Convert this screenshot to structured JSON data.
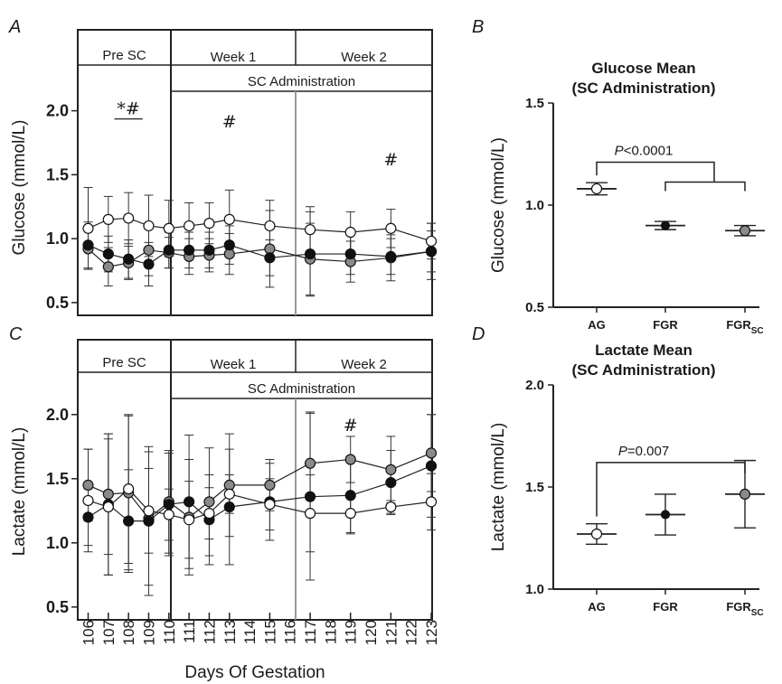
{
  "panel_letters": [
    "A",
    "B",
    "C",
    "D"
  ],
  "phases": {
    "pre": "Pre SC",
    "week1": "Week 1",
    "week2": "Week 2",
    "admin": "SC Administration"
  },
  "x_axis_title": "Days Of Gestation",
  "colors": {
    "AG": "#ffffff",
    "FGR": "#111111",
    "FGR_SC": "#8a8a8a",
    "week_divider": "#999999"
  },
  "chart_data": [
    {
      "id": "A",
      "type": "line",
      "ylabel": "Glucose (mmol/L)",
      "ylim": [
        0.4,
        2.4
      ],
      "yticks": [
        0.5,
        1.0,
        1.5,
        2.0
      ],
      "ytick_labels": [
        "0.5",
        "1.0",
        "1.5",
        "2.0"
      ],
      "x": [
        106,
        107,
        108,
        109,
        110,
        111,
        112,
        113,
        115,
        117,
        119,
        121,
        123
      ],
      "annotations": [
        {
          "text": "*#",
          "x": 108,
          "y": 2.0,
          "underline": [
            107.3,
            108.7
          ]
        },
        {
          "text": "#",
          "x": 113,
          "y": 1.9
        },
        {
          "text": "#",
          "x": 121,
          "y": 1.6
        }
      ],
      "series": [
        {
          "group": "AG",
          "values": [
            1.08,
            1.15,
            1.16,
            1.1,
            1.08,
            1.1,
            1.12,
            1.15,
            1.1,
            1.07,
            1.05,
            1.08,
            0.98
          ],
          "err": [
            0.32,
            0.18,
            0.2,
            0.24,
            0.22,
            0.18,
            0.16,
            0.23,
            0.2,
            0.18,
            0.16,
            0.15,
            0.14
          ]
        },
        {
          "group": "FGR",
          "values": [
            0.95,
            0.88,
            0.84,
            0.8,
            0.91,
            0.91,
            0.91,
            0.95,
            0.85,
            0.88,
            0.88,
            0.86,
            0.9
          ],
          "err": [
            0.18,
            0.14,
            0.15,
            0.17,
            0.14,
            0.14,
            0.14,
            0.15,
            0.14,
            0.33,
            0.16,
            0.14,
            0.16
          ]
        },
        {
          "group": "FGR_SC",
          "values": [
            0.92,
            0.78,
            0.81,
            0.91,
            0.89,
            0.86,
            0.87,
            0.88,
            0.92,
            0.84,
            0.82,
            0.85,
            0.9
          ],
          "err": [
            0.16,
            0.15,
            0.13,
            0.2,
            0.12,
            0.14,
            0.13,
            0.16,
            0.3,
            0.28,
            0.16,
            0.18,
            0.22
          ]
        }
      ]
    },
    {
      "id": "B",
      "type": "scatter",
      "title": [
        "Glucose Mean",
        "(SC Administration)"
      ],
      "ylabel": "Glucose (mmol/L)",
      "ylim": [
        0.5,
        1.5
      ],
      "yticks": [
        0.5,
        1.0,
        1.5
      ],
      "ytick_labels": [
        "0.5",
        "1.0",
        "1.5"
      ],
      "categories": [
        "AG",
        "FGR",
        "FGR_SC"
      ],
      "category_labels": [
        [
          "AG",
          ""
        ],
        [
          "FGR",
          ""
        ],
        [
          "FGR",
          "SC"
        ]
      ],
      "means": [
        1.08,
        0.9,
        0.875
      ],
      "err": [
        0.03,
        0.02,
        0.025
      ],
      "comparison": {
        "p_symbol": "P",
        "p_rest": "<0.0001",
        "from": 0,
        "to": [
          1,
          2
        ],
        "y": 1.21
      }
    },
    {
      "id": "C",
      "type": "line",
      "ylabel": "Lactate (mmol/L)",
      "ylim": [
        0.4,
        2.4
      ],
      "yticks": [
        0.5,
        1.0,
        1.5,
        2.0
      ],
      "ytick_labels": [
        "0.5",
        "1.0",
        "1.5",
        "2.0"
      ],
      "x": [
        106,
        107,
        108,
        109,
        110,
        111,
        112,
        113,
        115,
        117,
        119,
        121,
        123
      ],
      "annotations": [
        {
          "text": "#",
          "x": 119,
          "y": 1.9
        }
      ],
      "series": [
        {
          "group": "AG",
          "values": [
            1.33,
            1.28,
            1.42,
            1.25,
            1.22,
            1.18,
            1.23,
            1.38,
            1.3,
            1.23,
            1.23,
            1.28,
            1.32
          ],
          "err": [
            0.4,
            0.53,
            0.58,
            0.33,
            0.2,
            0.3,
            0.2,
            0.15,
            0.2,
            0.3,
            0.15,
            0.05,
            0.22
          ]
        },
        {
          "group": "FGR",
          "values": [
            1.2,
            1.3,
            1.17,
            1.17,
            1.3,
            1.32,
            1.18,
            1.28,
            1.32,
            1.36,
            1.37,
            1.47,
            1.6
          ],
          "err": [
            0.22,
            0.55,
            0.4,
            0.58,
            0.4,
            0.52,
            0.35,
            0.45,
            0.3,
            0.65,
            0.3,
            0.25,
            0.4
          ]
        },
        {
          "group": "FGR_SC",
          "values": [
            1.45,
            1.38,
            1.39,
            1.19,
            1.32,
            1.2,
            1.32,
            1.45,
            1.45,
            1.62,
            1.65,
            1.57,
            1.7
          ],
          "err": [
            0.28,
            0.47,
            0.6,
            0.52,
            0.4,
            0.45,
            0.42,
            0.4,
            0.2,
            0.4,
            0.18,
            0.26,
            0.3
          ]
        }
      ]
    },
    {
      "id": "D",
      "type": "scatter",
      "title": [
        "Lactate Mean",
        "(SC Administration)"
      ],
      "ylabel": "Lactate (mmol/L)",
      "ylim": [
        1.0,
        2.0
      ],
      "yticks": [
        1.0,
        1.5,
        2.0
      ],
      "ytick_labels": [
        "1.0",
        "1.5",
        "2.0"
      ],
      "categories": [
        "AG",
        "FGR",
        "FGR_SC"
      ],
      "category_labels": [
        [
          "AG",
          ""
        ],
        [
          "FGR",
          ""
        ],
        [
          "FGR",
          "SC"
        ]
      ],
      "means": [
        1.27,
        1.365,
        1.465
      ],
      "err": [
        0.05,
        0.1,
        0.165
      ],
      "comparison": {
        "p_symbol": "P",
        "p_rest": "=0.007",
        "from": 0,
        "to": [
          2
        ],
        "y": 1.62
      }
    }
  ]
}
